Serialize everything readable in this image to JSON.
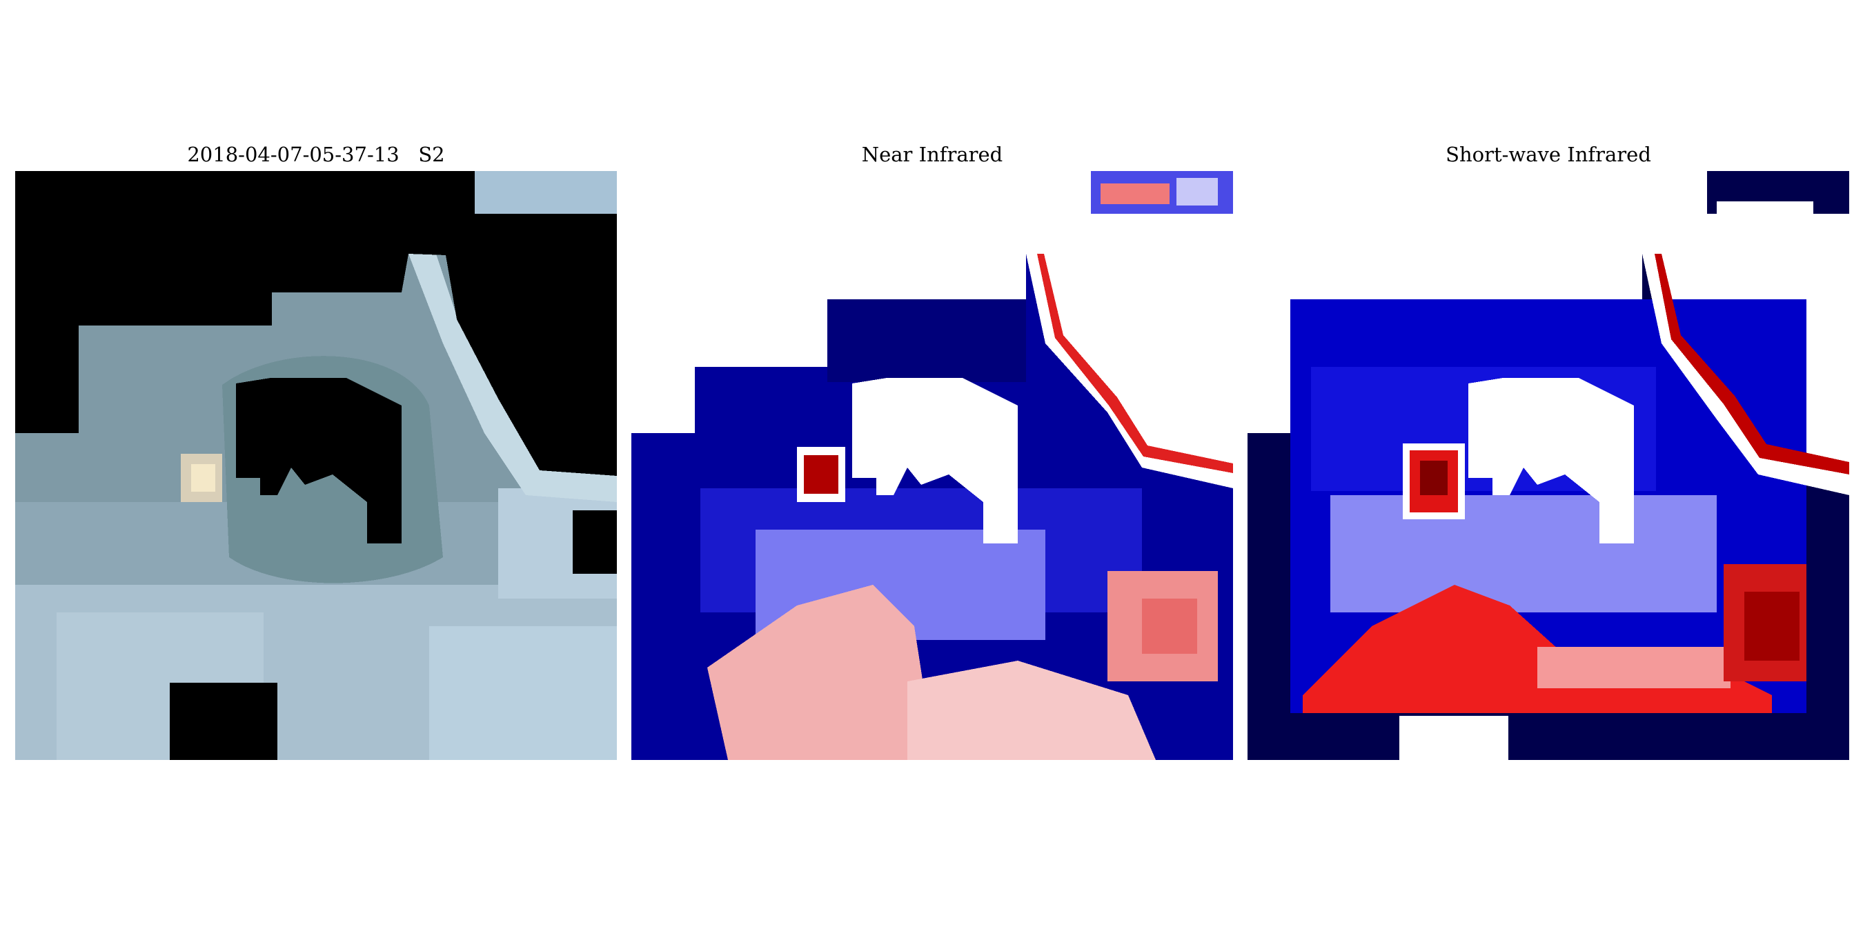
{
  "panels": [
    {
      "id": "true-color",
      "title": "2018-04-07-05-37-13   S2",
      "band": "RGB",
      "colors": {
        "masked": "#000000",
        "water": "#6f9199",
        "ring": "#5f7f86",
        "cloud": "#b7ccda",
        "hot": "#f2e4c4"
      }
    },
    {
      "id": "nir",
      "title": "Near Infrared",
      "band": "NIR",
      "colormap": "seismic",
      "colors": {
        "masked": "#ffffff",
        "low": "#00004c",
        "mid": "#ffffff",
        "high": "#800000"
      }
    },
    {
      "id": "swir",
      "title": "Short-wave Infrared",
      "band": "SWIR",
      "colormap": "seismic",
      "colors": {
        "masked": "#ffffff",
        "low": "#00004c",
        "mid": "#ffffff",
        "high": "#800000"
      }
    }
  ]
}
